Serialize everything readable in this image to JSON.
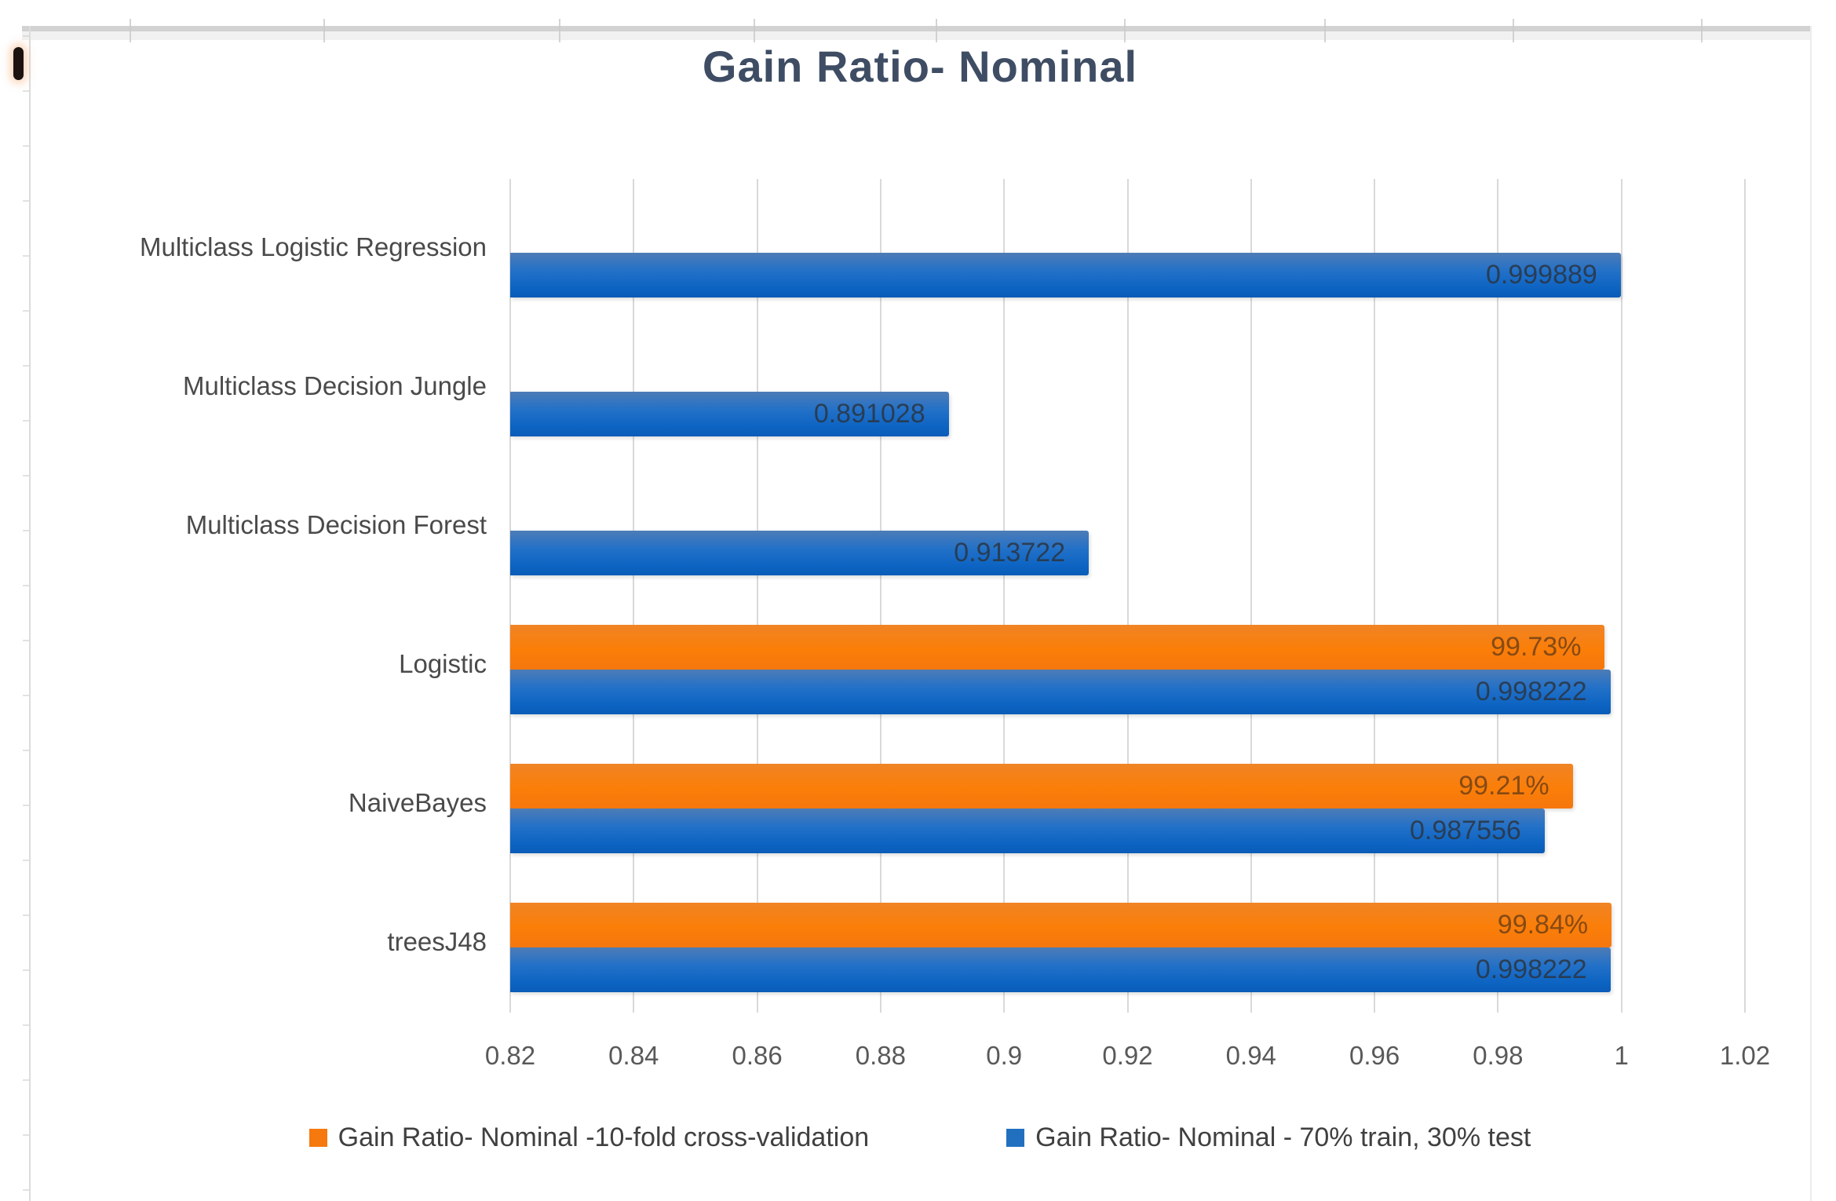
{
  "artifacts": {
    "stray_mark": "partial-parenthesis-glyph-left-edge"
  },
  "chart_data": {
    "type": "bar",
    "orientation": "horizontal",
    "title": "Gain Ratio- Nominal",
    "categories": [
      "Multiclass Logistic Regression",
      "Multiclass Decision Jungle",
      "Multiclass Decision Forest",
      "Logistic",
      "NaiveBayes",
      "treesJ48"
    ],
    "series": [
      {
        "name": "Gain Ratio- Nominal -10-fold cross-validation",
        "color": "#f5790d",
        "values": [
          null,
          null,
          null,
          0.9973,
          0.9921,
          0.9984
        ],
        "labels": [
          null,
          null,
          null,
          "99.73%",
          "99.21%",
          "99.84%"
        ]
      },
      {
        "name": "Gain Ratio- Nominal - 70% train, 30% test",
        "color": "#2170c0",
        "values": [
          0.999889,
          0.891028,
          0.913722,
          0.998222,
          0.987556,
          0.998222
        ],
        "labels": [
          "0.999889",
          "0.891028",
          "0.913722",
          "0.998222",
          "0.987556",
          "0.998222"
        ]
      }
    ],
    "xlim": [
      0.82,
      1.02
    ],
    "xticks": [
      "0.82",
      "0.84",
      "0.86",
      "0.88",
      "0.9",
      "0.92",
      "0.94",
      "0.96",
      "0.98",
      "1",
      "1.02"
    ],
    "xtick_values": [
      0.82,
      0.84,
      0.86,
      0.88,
      0.9,
      0.92,
      0.94,
      0.96,
      0.98,
      1.0,
      1.02
    ],
    "grid": true,
    "legend_position": "bottom",
    "gridline_color": "#d9d9d9",
    "title_color": "#3e4d63"
  }
}
